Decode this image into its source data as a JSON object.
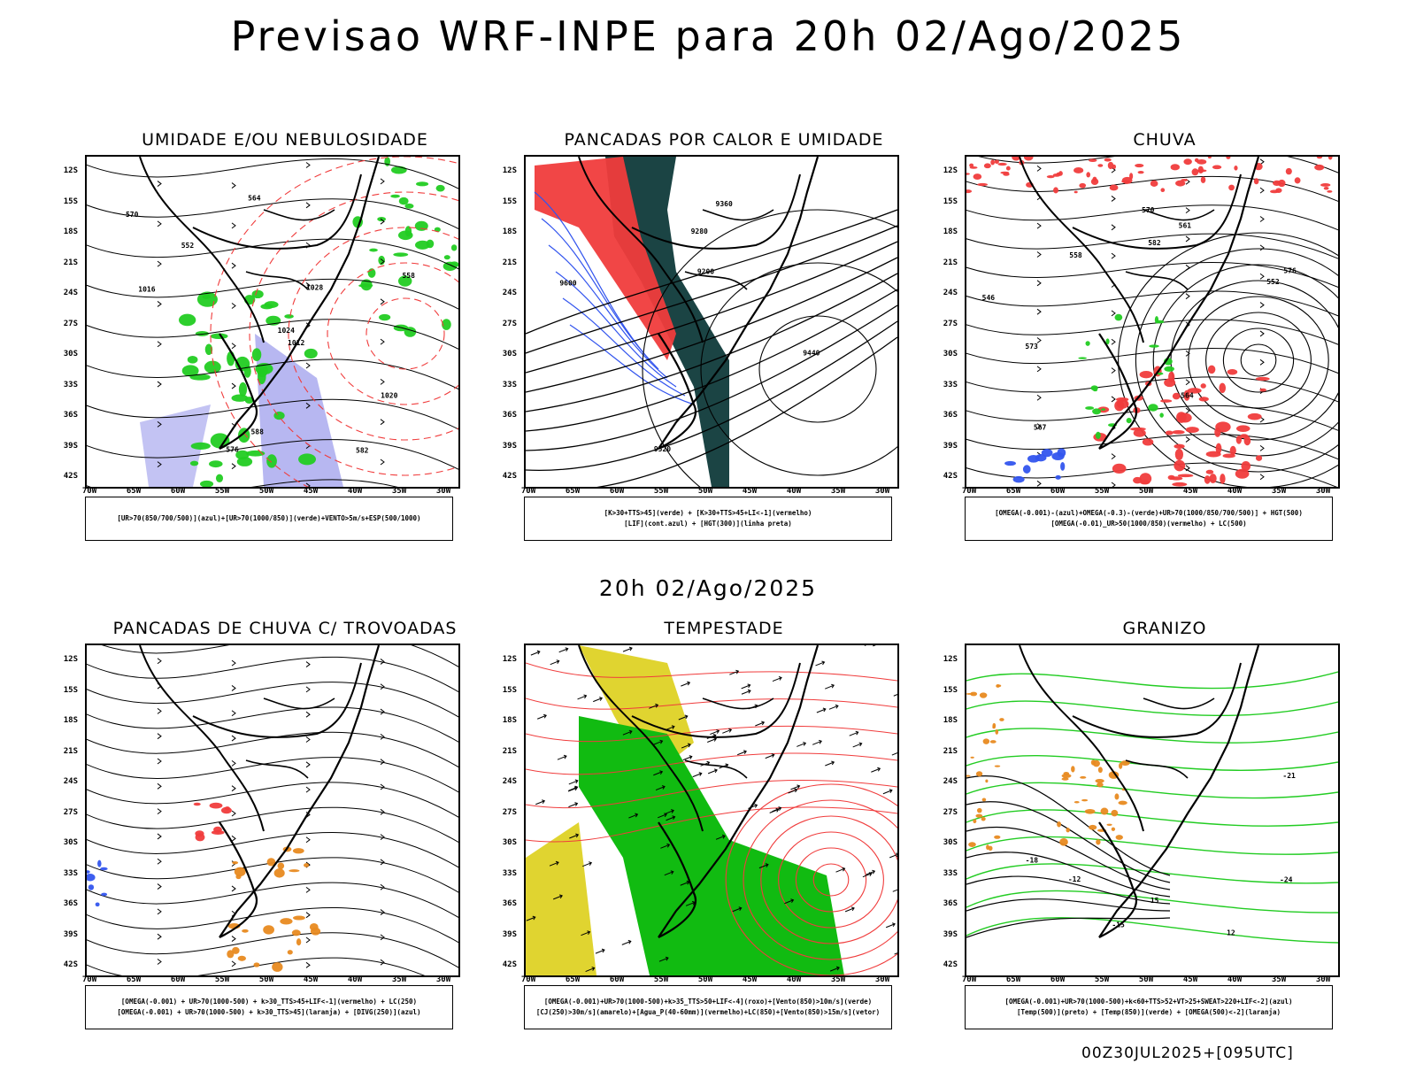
{
  "main_title": "Previsao WRF-INPE  para 20h 02/Ago/2025",
  "mid_title": "20h 02/Ago/2025",
  "footer": "00Z30JUL2025+[095UTC]",
  "lat_labels": [
    "12S",
    "15S",
    "18S",
    "21S",
    "24S",
    "27S",
    "30S",
    "33S",
    "36S",
    "39S",
    "42S"
  ],
  "lon_labels": [
    "70W",
    "65W",
    "60W",
    "55W",
    "50W",
    "45W",
    "40W",
    "35W",
    "30W"
  ],
  "colors": {
    "red": "#f03c3c",
    "green": "#22cc22",
    "blue": "#3355ee",
    "lavender": "#aaaaee",
    "dark_teal": "#1b4444",
    "yellow": "#e0d430",
    "orange": "#e88a20",
    "bright_green": "#11bb11"
  },
  "panels": [
    {
      "title": "UMIDADE E/OU NEBULOSIDADE",
      "legend": [
        "[UR>70(850/700/500)](azul)+[UR>70(1000/850)](verde)+VENTO>5m/s+ESP(500/1000)"
      ],
      "contour_labels": [
        "1012",
        "1016",
        "1020",
        "1024",
        "1028",
        "570",
        "576",
        "582",
        "588",
        "564",
        "558",
        "552"
      ]
    },
    {
      "title": "PANCADAS POR CALOR E UMIDADE",
      "legend": [
        "[K>30+TTS>45](verde)  +  [K>30+TTS>45+LI<-1](vermelho)",
        "[LIF](cont.azul)  +  [HGT(300)](linha preta)"
      ],
      "contour_labels": [
        "9600",
        "9520",
        "9440",
        "9360",
        "9280",
        "9200"
      ]
    },
    {
      "title": "CHUVA",
      "legend": [
        "[OMEGA(-0.001)-(azul)+OMEGA(-0.3)-(verde)+UR>70(1000/850/700/500)]  +  HGT(500)",
        "[OMEGA(-0.01)_UR>50(1000/850)(vermelho)  +  LC(500)"
      ],
      "contour_labels": [
        "582",
        "576",
        "570",
        "567",
        "564",
        "561",
        "558",
        "552",
        "546",
        "573"
      ]
    },
    {
      "title": "PANCADAS DE CHUVA C/ TROVOADAS",
      "legend": [
        "[OMEGA(-0.001)  +  UR>70(1000-500)  +  k>30_TTS>45+LIF<-1](vermelho)  +  LC(250)",
        "[OMEGA(-0.001)  +  UR>70(1000-500)  +  k>30_TTS>45](laranja)  +  [DIVG(250)](azul)"
      ],
      "contour_labels": []
    },
    {
      "title": "TEMPESTADE",
      "legend": [
        "[OMEGA(-0.001)+UR>70(1000-500)+k>35_TTS>50+LIF<-4](roxo)+[Vento(850)>10m/s](verde)",
        "[CJ(250)>30m/s](amarelo)+[Agua_P(40-60mm)](vermelho)+LC(850)+[Vento(850)>15m/s](vetor)"
      ],
      "contour_labels": []
    },
    {
      "title": "GRANIZO",
      "legend": [
        "[OMEGA(-0.001)+UR>70(1000-500)+k<60+TTS>52+VT>25+SWEAT>220+LIF<-2](azul)",
        "[Temp(500)](preto)  +  [Temp(850)](verde)  +  [OMEGA(500)<-2](laranja)"
      ],
      "contour_labels": [
        "-12",
        "-15",
        "-18",
        "-21",
        "-24",
        "12",
        "15"
      ]
    }
  ]
}
